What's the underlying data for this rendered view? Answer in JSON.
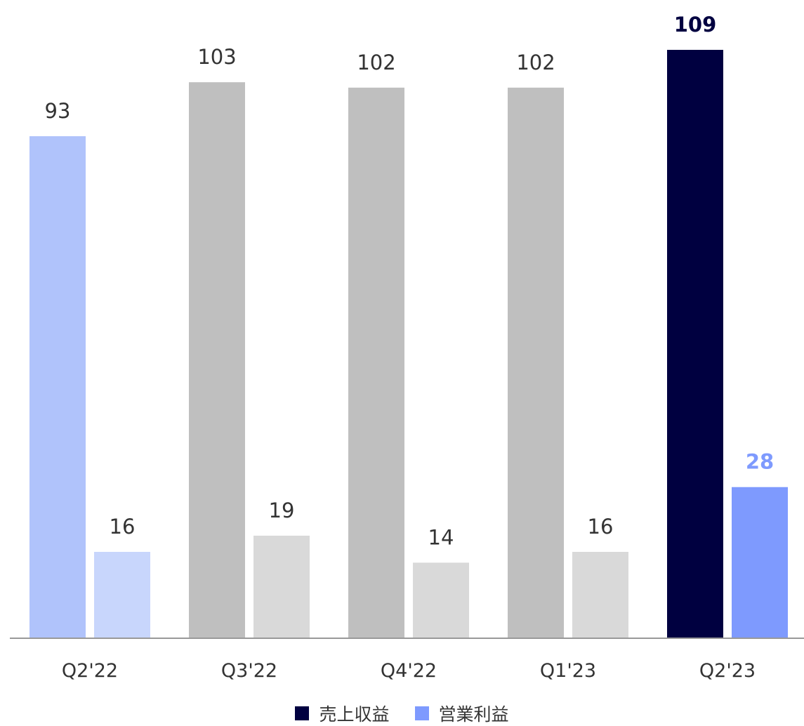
{
  "chart_data": {
    "type": "bar",
    "categories": [
      "Q2'22",
      "Q3'22",
      "Q4'22",
      "Q1'23",
      "Q2'23"
    ],
    "series": [
      {
        "name": "売上収益",
        "values": [
          93,
          103,
          102,
          102,
          109
        ]
      },
      {
        "name": "営業利益",
        "values": [
          16,
          19,
          14,
          16,
          28
        ]
      }
    ],
    "data_labels": {
      "series_0": [
        "93",
        "103",
        "102",
        "102",
        "109"
      ],
      "series_1": [
        "16",
        "19",
        "14",
        "16",
        "28"
      ]
    },
    "ylim": [
      0,
      109
    ],
    "grid": false,
    "legend_position": "bottom-center",
    "highlight_category": "Q2'23",
    "colors": {
      "revenue_muted": "#bfbfbf",
      "profit_muted": "#d9d9d9",
      "revenue_first": "#b0c3fb",
      "profit_first": "#c8d6fc",
      "revenue_highlight": "#000040",
      "profit_highlight": "#7e9afe",
      "label_default": "#333333",
      "axis_line": "#999999"
    }
  },
  "legend": [
    {
      "label": "売上収益",
      "color": "#000040"
    },
    {
      "label": "営業利益",
      "color": "#7e9afe"
    }
  ]
}
